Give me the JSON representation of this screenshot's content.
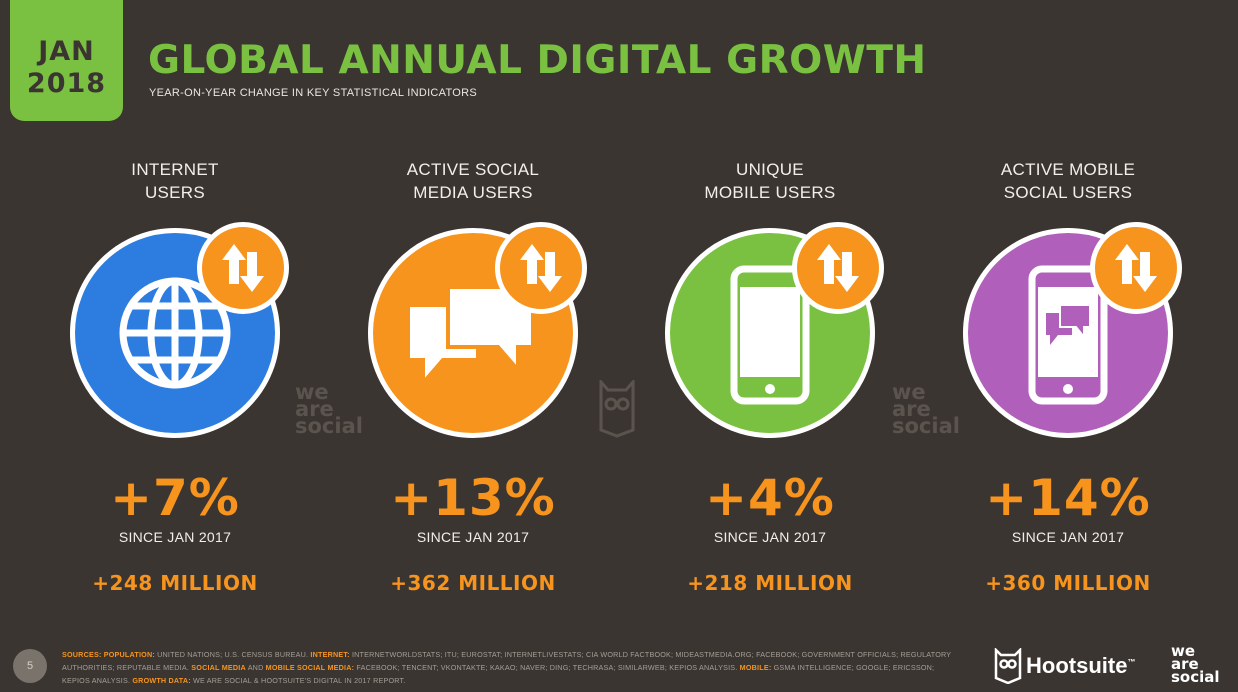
{
  "header": {
    "date_month": "JAN",
    "date_year": "2018",
    "title": "GLOBAL ANNUAL DIGITAL GROWTH",
    "subtitle": "YEAR-ON-YEAR CHANGE IN KEY STATISTICAL INDICATORS"
  },
  "colors": {
    "background": "#3b3531",
    "green": "#7ac142",
    "orange": "#f7941d",
    "blue": "#2d7de1",
    "purple": "#b05fbb"
  },
  "metrics": [
    {
      "label": "INTERNET\nUSERS",
      "icon": "globe-icon",
      "change": "+7%",
      "since": "SINCE JAN 2017",
      "absolute": "+248 MILLION",
      "color": "#2d7de1"
    },
    {
      "label": "ACTIVE SOCIAL\nMEDIA USERS",
      "icon": "chat-bubbles-icon",
      "change": "+13%",
      "since": "SINCE JAN 2017",
      "absolute": "+362 MILLION",
      "color": "#f7941d"
    },
    {
      "label": "UNIQUE\nMOBILE USERS",
      "icon": "mobile-phone-icon",
      "change": "+4%",
      "since": "SINCE JAN 2017",
      "absolute": "+218 MILLION",
      "color": "#7ac142"
    },
    {
      "label": "ACTIVE MOBILE\nSOCIAL USERS",
      "icon": "mobile-chat-icon",
      "change": "+14%",
      "since": "SINCE JAN 2017",
      "absolute": "+360 MILLION",
      "color": "#b05fbb"
    }
  ],
  "watermark": "we\nare\nsocial",
  "footer": {
    "page_number": "5",
    "sources_label": "SOURCES:",
    "population_label": "POPULATION:",
    "population_text": "UNITED NATIONS; U.S. CENSUS BUREAU.",
    "internet_label": "INTERNET:",
    "internet_text": "INTERNETWORLDSTATS; ITU; EUROSTAT; INTERNETLIVESTATS; CIA WORLD FACTBOOK; MIDEASTMEDIA.ORG; FACEBOOK; GOVERNMENT OFFICIALS; REGULATORY AUTHORITIES; REPUTABLE MEDIA.",
    "social_label": "SOCIAL MEDIA",
    "and_text": "AND",
    "mobile_social_label": "MOBILE SOCIAL MEDIA:",
    "social_text": "FACEBOOK; TENCENT; VKONTAKTE; KAKAO; NAVER; DING; TECHRASA; SIMILARWEB; KEPIOS ANALYSIS.",
    "mobile_label": "MOBILE:",
    "mobile_text": "GSMA INTELLIGENCE; GOOGLE; ERICSSON; KEPIOS ANALYSIS.",
    "growth_label": "GROWTH DATA:",
    "growth_text": "WE ARE SOCIAL & HOOTSUITE'S DIGITAL IN 2017 REPORT.",
    "brand": "Hootsuite",
    "brand_tm": "™",
    "partner": "we\nare\nsocial"
  }
}
